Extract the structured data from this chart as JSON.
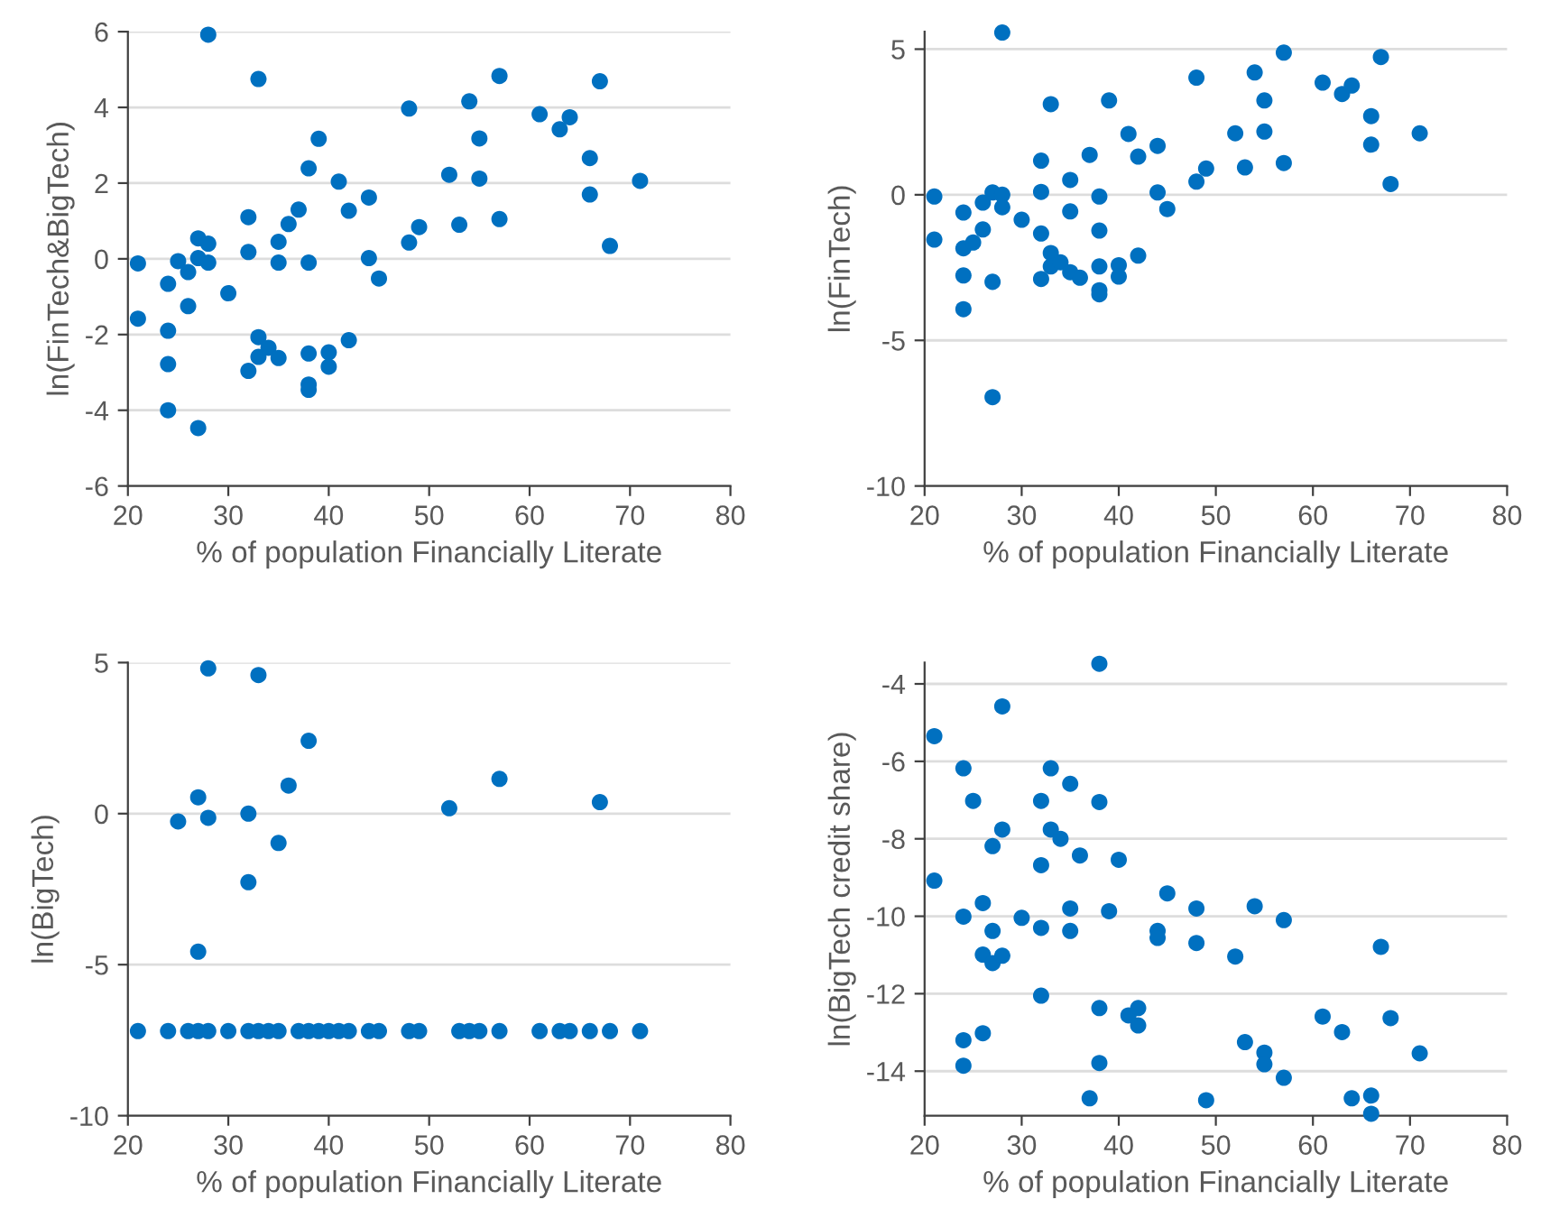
{
  "chart_data": [
    {
      "type": "scatter",
      "xlabel": "% of population Financially Literate",
      "ylabel": "ln(FinTech&BigTech)",
      "xlim": [
        20,
        80
      ],
      "xticks": [
        20,
        30,
        40,
        50,
        60,
        70,
        80
      ],
      "ylim": [
        -6,
        6
      ],
      "yticks": [
        -6,
        -4,
        -2,
        0,
        2,
        4,
        6
      ],
      "grid": "y",
      "marker": "circle",
      "legend": false,
      "series": [
        {
          "color": "#0070c0",
          "x": [
            28,
            33,
            21,
            21,
            24,
            24,
            24,
            24,
            27,
            25,
            26,
            26,
            27,
            27,
            28,
            28,
            30,
            32,
            32,
            33,
            34,
            33,
            32,
            35,
            35,
            35,
            36,
            37,
            38,
            39,
            38,
            38,
            38,
            38,
            40,
            40,
            41,
            42,
            42,
            44,
            44,
            45,
            48,
            48,
            49,
            52,
            53,
            54,
            55,
            55,
            57,
            57,
            61,
            63,
            64,
            66,
            66,
            67,
            68,
            71
          ],
          "values": [
            5.92,
            4.75,
            -0.12,
            -1.58,
            -0.66,
            -1.9,
            -2.78,
            -4.0,
            -4.47,
            -0.06,
            -0.35,
            -1.25,
            0.54,
            0.02,
            0.4,
            -0.1,
            -0.91,
            1.1,
            0.18,
            -2.07,
            -2.35,
            -2.59,
            -2.96,
            -2.62,
            0.45,
            -0.1,
            0.92,
            1.3,
            2.39,
            3.17,
            -0.1,
            -2.5,
            -3.32,
            -3.46,
            -2.47,
            -2.85,
            2.04,
            1.27,
            -2.15,
            1.62,
            0.02,
            -0.52,
            3.97,
            0.43,
            0.84,
            2.22,
            0.9,
            4.16,
            3.18,
            2.12,
            4.83,
            1.05,
            3.82,
            3.42,
            3.74,
            2.66,
            1.7,
            4.69,
            0.34,
            2.06
          ]
        }
      ]
    },
    {
      "type": "scatter",
      "xlabel": "% of population Financially Literate",
      "ylabel": "ln(FinTech)",
      "xlim": [
        20,
        80
      ],
      "xticks": [
        20,
        30,
        40,
        50,
        60,
        70,
        80
      ],
      "ylim": [
        -10,
        5.6
      ],
      "yticks": [
        -10,
        -5,
        0,
        5
      ],
      "grid": "y",
      "marker": "circle",
      "legend": false,
      "series": [
        {
          "color": "#0070c0",
          "x": [
            28,
            21,
            21,
            24,
            24,
            25,
            24,
            24,
            26,
            26,
            27,
            28,
            28,
            27,
            27,
            30,
            32,
            32,
            32,
            32,
            33,
            33,
            33,
            34,
            35,
            35,
            35,
            36,
            37,
            38,
            38,
            38,
            38,
            38,
            39,
            40,
            40,
            41,
            42,
            42,
            44,
            44,
            45,
            48,
            48,
            49,
            52,
            53,
            54,
            55,
            55,
            57,
            57,
            61,
            63,
            64,
            66,
            66,
            67,
            68,
            71
          ],
          "values": [
            5.57,
            -0.06,
            -1.54,
            -0.61,
            -1.84,
            -1.64,
            -2.77,
            -3.93,
            -0.27,
            -1.19,
            0.08,
            0,
            -0.43,
            -2.99,
            -6.95,
            -0.86,
            1.17,
            0.1,
            -1.33,
            -2.89,
            3.11,
            -2.0,
            -2.46,
            -2.32,
            0.51,
            -0.57,
            -2.66,
            -2.85,
            1.37,
            -0.06,
            -1.23,
            -2.46,
            -3.28,
            -3.42,
            3.24,
            -2.42,
            -2.81,
            2.09,
            1.31,
            -2.09,
            1.68,
            0.08,
            -0.49,
            4.02,
            0.45,
            0.9,
            2.11,
            0.94,
            4.2,
            3.24,
            2.17,
            4.88,
            1.09,
            3.85,
            3.46,
            3.75,
            2.7,
            1.72,
            4.73,
            0.37,
            2.11
          ]
        }
      ]
    },
    {
      "type": "scatter",
      "xlabel": "% of population Financially Literate",
      "ylabel": "ln(BigTech)",
      "xlim": [
        20,
        80
      ],
      "xticks": [
        20,
        30,
        40,
        50,
        60,
        70,
        80
      ],
      "ylim": [
        -10,
        5
      ],
      "yticks": [
        -10,
        -5,
        0,
        5
      ],
      "grid": "y",
      "marker": "circle",
      "legend": false,
      "series": [
        {
          "color": "#0070c0",
          "x": [
            28,
            33,
            38,
            36,
            27,
            25,
            28,
            32,
            35,
            32,
            27,
            52,
            57,
            67,
            21,
            24,
            26,
            27,
            28,
            30,
            32,
            33,
            34,
            35,
            37,
            38,
            39,
            40,
            41,
            42,
            44,
            45,
            48,
            49,
            53,
            54,
            55,
            57,
            61,
            63,
            64,
            66,
            68,
            71
          ],
          "values": [
            4.81,
            4.59,
            2.41,
            0.93,
            0.54,
            -0.26,
            -0.14,
            0,
            -0.97,
            -2.27,
            -4.57,
            0.18,
            1.15,
            0.38,
            -7.2,
            -7.2,
            -7.2,
            -7.2,
            -7.2,
            -7.2,
            -7.2,
            -7.2,
            -7.2,
            -7.2,
            -7.2,
            -7.2,
            -7.2,
            -7.2,
            -7.2,
            -7.2,
            -7.2,
            -7.2,
            -7.2,
            -7.2,
            -7.2,
            -7.2,
            -7.2,
            -7.2,
            -7.2,
            -7.2,
            -7.2,
            -7.2,
            -7.2,
            -7.2
          ]
        }
      ]
    },
    {
      "type": "scatter",
      "xlabel": "% of population Financially Literate",
      "ylabel": "ln(BigTech credit share)",
      "xlim": [
        20,
        80
      ],
      "xticks": [
        20,
        30,
        40,
        50,
        60,
        70,
        80
      ],
      "ylim": [
        -15.15,
        -3.45
      ],
      "yticks": [
        -14,
        -12,
        -10,
        -8,
        -6,
        -4
      ],
      "grid": "y",
      "marker": "circle",
      "legend": false,
      "series": [
        {
          "color": "#0070c0",
          "x": [
            38,
            28,
            21,
            24,
            25,
            33,
            32,
            35,
            38,
            28,
            33,
            34,
            27,
            32,
            36,
            40,
            21,
            26,
            24,
            30,
            27,
            32,
            35,
            35,
            39,
            26,
            27,
            28,
            32,
            24,
            24,
            26,
            38,
            38,
            37,
            41,
            42,
            42,
            44,
            44,
            45,
            48,
            48,
            49,
            52,
            53,
            54,
            55,
            55,
            57,
            57,
            61,
            63,
            64,
            66,
            66,
            67,
            68,
            71
          ],
          "values": [
            -3.48,
            -4.58,
            -5.35,
            -6.18,
            -7.02,
            -6.18,
            -7.02,
            -6.58,
            -7.05,
            -7.76,
            -7.76,
            -8.0,
            -8.19,
            -8.68,
            -8.43,
            -8.54,
            -9.08,
            -9.66,
            -10.01,
            -10.04,
            -10.38,
            -10.3,
            -9.8,
            -10.38,
            -9.87,
            -10.99,
            -11.21,
            -11.02,
            -12.05,
            -13.2,
            -13.86,
            -13.02,
            -12.37,
            -13.79,
            -14.7,
            -12.56,
            -12.37,
            -12.82,
            -10.38,
            -10.56,
            -9.41,
            -9.8,
            -10.69,
            -14.75,
            -11.04,
            -13.25,
            -9.74,
            -13.52,
            -13.82,
            -10.1,
            -14.17,
            -12.59,
            -12.99,
            -14.7,
            -14.63,
            -15.1,
            -10.79,
            -12.63,
            -13.54
          ]
        }
      ]
    }
  ]
}
